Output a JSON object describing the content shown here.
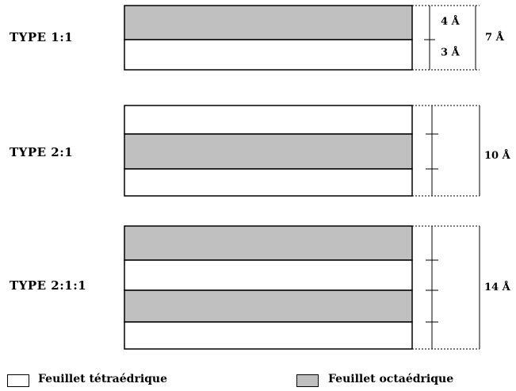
{
  "diagram": {
    "types": [
      {
        "label": "TYPE 1:1",
        "layers": [
          "octahedral",
          "tetrahedral"
        ],
        "dims": [
          "4 Å",
          "3 Å"
        ],
        "total": "7 Å"
      },
      {
        "label": "TYPE 2:1",
        "layers": [
          "tetrahedral",
          "octahedral",
          "tetrahedral"
        ],
        "total": "10 Å"
      },
      {
        "label": "TYPE 2:1:1",
        "layers": [
          "octahedral",
          "tetrahedral",
          "octahedral",
          "tetrahedral"
        ],
        "total": "14 Å"
      }
    ]
  },
  "legend": {
    "tetrahedral": "Feuillet tétraédrique",
    "octahedral": "Feuillet octaédrique"
  },
  "colors": {
    "octahedral": "#c0c0c0",
    "tetrahedral": "#ffffff",
    "stroke": "#000000"
  }
}
